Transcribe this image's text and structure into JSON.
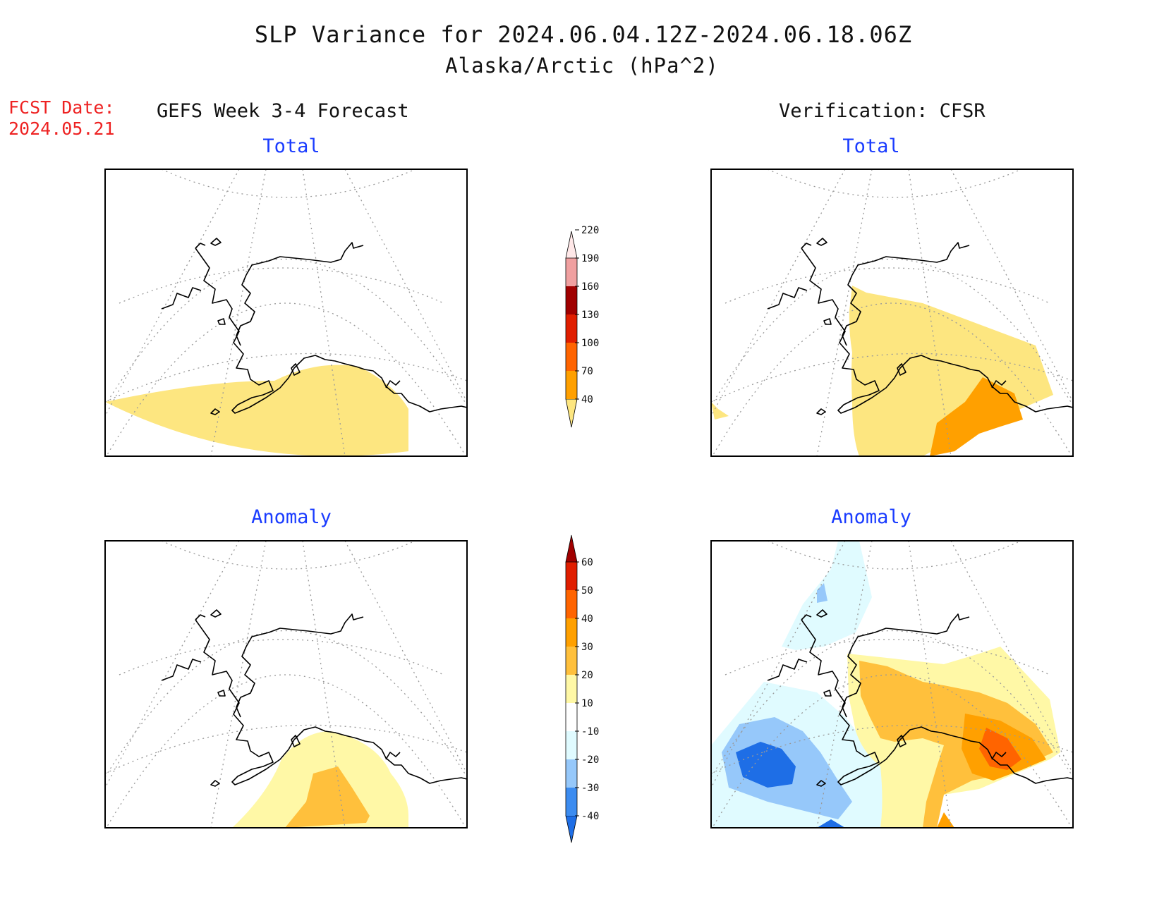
{
  "title": "SLP Variance for 2024.06.04.12Z-2024.06.18.06Z",
  "subtitle": "Alaska/Arctic (hPa^2)",
  "forecast_date_label": "FCST Date:",
  "forecast_date": "2024.05.21",
  "left_column_title": "GEFS Week 3-4 Forecast",
  "right_column_title": "Verification: CFSR",
  "panels": {
    "forecast_total": "Total",
    "forecast_anomaly": "Anomaly",
    "verification_total": "Total",
    "verification_anomaly": "Anomaly"
  },
  "colorbars": {
    "total": {
      "levels": [
        "40",
        "70",
        "100",
        "130",
        "160",
        "190",
        "220"
      ],
      "colors": [
        "#fde680",
        "#ffa000",
        "#ff6400",
        "#e01e00",
        "#a00000",
        "#f0a0a0",
        "#ffe8e8"
      ]
    },
    "anomaly": {
      "levels": [
        "-40",
        "-30",
        "-20",
        "-10",
        "10",
        "20",
        "30",
        "40",
        "50",
        "60"
      ],
      "colors": [
        "#1e6ee6",
        "#3c8cf0",
        "#96c8fa",
        "#e0fbff",
        "#ffffff",
        "#fff8a6",
        "#ffc03c",
        "#ffa000",
        "#ff6400",
        "#e01e00",
        "#a00000"
      ]
    }
  },
  "colors": {
    "title_text": "#111111",
    "forecast_date_text": "#ee2222",
    "panel_title_text": "#1a3cff",
    "coastline": "#000000",
    "graticule": "#999999"
  }
}
